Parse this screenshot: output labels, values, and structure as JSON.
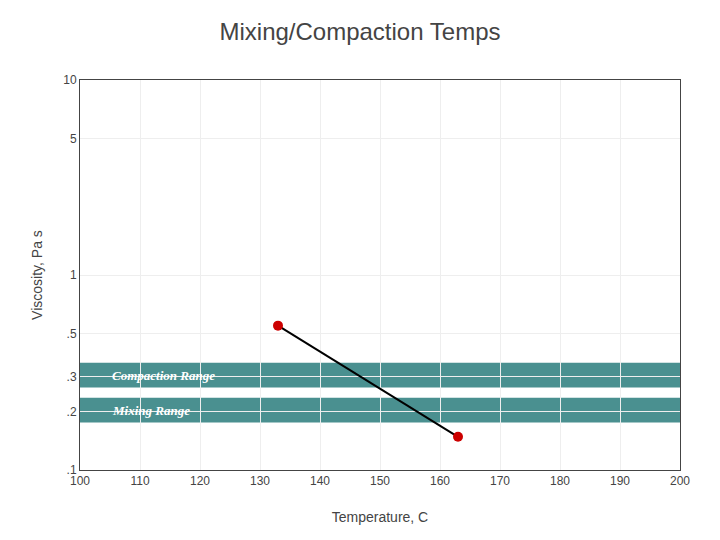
{
  "chart_data": {
    "type": "line",
    "title": "Mixing/Compaction Temps",
    "x_label": "Temperature, C",
    "y_label": "Viscosity, Pa s",
    "x": [
      133,
      163
    ],
    "values": [
      0.55,
      0.148
    ],
    "color": "#000000",
    "colors": [
      "#cc0000",
      "#cc0000"
    ],
    "marker": "circle",
    "log": "y",
    "grid": true,
    "xlim": [
      100,
      200
    ],
    "xticks": [
      100,
      110,
      120,
      130,
      140,
      150,
      160,
      170,
      180,
      190,
      200
    ],
    "ylim": [
      0.1,
      10
    ],
    "yticks": [
      {
        "value": 0.1,
        "label": ".1"
      },
      {
        "value": 0.2,
        "label": ".2"
      },
      {
        "value": 0.3,
        "label": ".3"
      },
      {
        "value": 0.5,
        "label": ".5"
      },
      1,
      5,
      10
    ],
    "bands": [
      {
        "label": "Compaction Range",
        "range": [
          0.265,
          0.355
        ],
        "color": "#4a9090"
      },
      {
        "label": "Mixing Range",
        "range": [
          0.175,
          0.235
        ],
        "color": "#4a9090"
      }
    ]
  }
}
